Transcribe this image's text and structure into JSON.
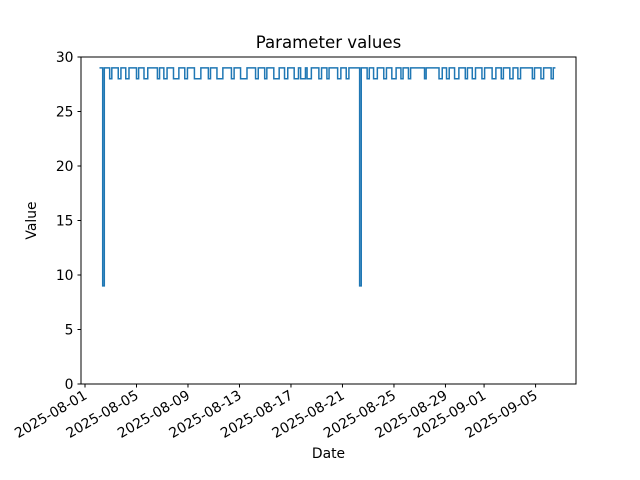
{
  "figure": {
    "background": "#ffffff",
    "axis_color": "#000000"
  },
  "chart_data": {
    "type": "line",
    "title": "Parameter values",
    "xlabel": "Date",
    "ylabel": "Value",
    "grid": false,
    "legend": "none",
    "ylim": [
      0,
      30
    ],
    "yticks": [
      0,
      5,
      10,
      15,
      20,
      25,
      30
    ],
    "x_epoch": "2025-08-01",
    "xlim_days": [
      -0.31,
      38.14
    ],
    "xticks": [
      {
        "day": 0,
        "label": "2025-08-01"
      },
      {
        "day": 4,
        "label": "2025-08-05"
      },
      {
        "day": 8,
        "label": "2025-08-09"
      },
      {
        "day": 12,
        "label": "2025-08-13"
      },
      {
        "day": 16,
        "label": "2025-08-17"
      },
      {
        "day": 20,
        "label": "2025-08-21"
      },
      {
        "day": 24,
        "label": "2025-08-25"
      },
      {
        "day": 28,
        "label": "2025-08-29"
      },
      {
        "day": 31,
        "label": "2025-09-01"
      },
      {
        "day": 35,
        "label": "2025-09-05"
      }
    ],
    "xtick_rotation_deg": 30,
    "series": [
      {
        "name": "parameter-values",
        "color": "#1f77b4",
        "line_width": 1.5,
        "start_hour_from_epoch": 27,
        "note": "step series; pairs are [duration_hours, value]; value mostly alternates 29/28 with two brief dips to 9 near 2025-08-02 and 2025-08-22",
        "runs_hours_value": [
          [
            6,
            29
          ],
          [
            3,
            9
          ],
          [
            10,
            29
          ],
          [
            4,
            28
          ],
          [
            12,
            29
          ],
          [
            5,
            28
          ],
          [
            9,
            29
          ],
          [
            6,
            28
          ],
          [
            14,
            29
          ],
          [
            4,
            28
          ],
          [
            10,
            29
          ],
          [
            7,
            28
          ],
          [
            18,
            29
          ],
          [
            4,
            28
          ],
          [
            8,
            29
          ],
          [
            6,
            28
          ],
          [
            12,
            29
          ],
          [
            10,
            28
          ],
          [
            11,
            29
          ],
          [
            5,
            28
          ],
          [
            13,
            29
          ],
          [
            12,
            28
          ],
          [
            14,
            29
          ],
          [
            4,
            28
          ],
          [
            12,
            29
          ],
          [
            11,
            28
          ],
          [
            16,
            29
          ],
          [
            5,
            28
          ],
          [
            12,
            29
          ],
          [
            12,
            28
          ],
          [
            16,
            29
          ],
          [
            5,
            28
          ],
          [
            12,
            29
          ],
          [
            4,
            28
          ],
          [
            13,
            29
          ],
          [
            10,
            28
          ],
          [
            10,
            29
          ],
          [
            6,
            28
          ],
          [
            12,
            29
          ],
          [
            8,
            28
          ],
          [
            4,
            29
          ],
          [
            9,
            28
          ],
          [
            3,
            29
          ],
          [
            8,
            28
          ],
          [
            14,
            29
          ],
          [
            5,
            28
          ],
          [
            10,
            29
          ],
          [
            4,
            28
          ],
          [
            16,
            29
          ],
          [
            6,
            28
          ],
          [
            10,
            29
          ],
          [
            5,
            28
          ],
          [
            20,
            29
          ],
          [
            3,
            9
          ],
          [
            11,
            29
          ],
          [
            4,
            28
          ],
          [
            8,
            29
          ],
          [
            7,
            28
          ],
          [
            12,
            29
          ],
          [
            5,
            28
          ],
          [
            10,
            29
          ],
          [
            8,
            28
          ],
          [
            9,
            29
          ],
          [
            4,
            28
          ],
          [
            10,
            29
          ],
          [
            4,
            28
          ],
          [
            26,
            29
          ],
          [
            3,
            28
          ],
          [
            24,
            29
          ],
          [
            6,
            28
          ],
          [
            8,
            29
          ],
          [
            5,
            28
          ],
          [
            10,
            29
          ],
          [
            8,
            28
          ],
          [
            12,
            29
          ],
          [
            4,
            28
          ],
          [
            9,
            29
          ],
          [
            6,
            28
          ],
          [
            12,
            29
          ],
          [
            5,
            28
          ],
          [
            14,
            29
          ],
          [
            7,
            28
          ],
          [
            10,
            29
          ],
          [
            4,
            28
          ],
          [
            12,
            29
          ],
          [
            6,
            28
          ],
          [
            9,
            29
          ],
          [
            5,
            28
          ],
          [
            22,
            29
          ],
          [
            4,
            28
          ],
          [
            12,
            29
          ],
          [
            5,
            28
          ],
          [
            14,
            29
          ],
          [
            4,
            28
          ],
          [
            4,
            29
          ]
        ]
      }
    ]
  }
}
